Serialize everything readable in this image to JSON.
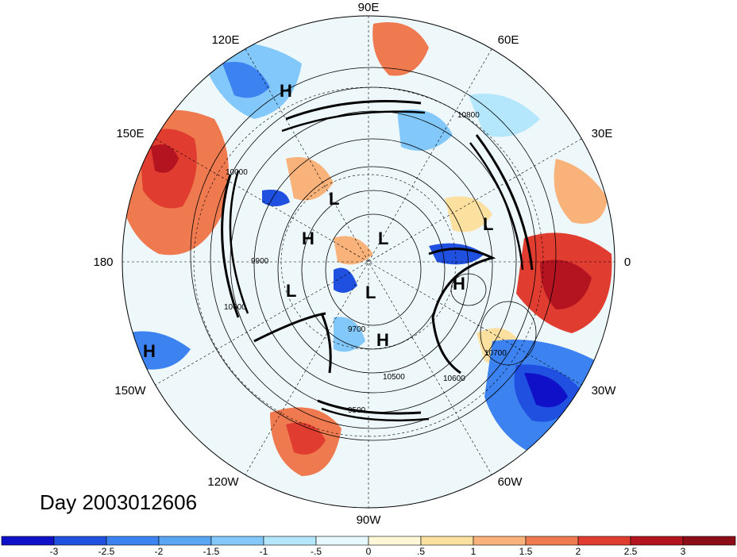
{
  "title": "Day 2003012606",
  "longitude_labels": {
    "top": "90E",
    "upper_left": "120E",
    "upper_right": "60E",
    "left_upper": "150E",
    "right_upper": "30E",
    "left": "180",
    "right": "0",
    "left_lower": "150W",
    "right_lower": "30W",
    "lower_left": "120W",
    "lower_right": "60W",
    "bottom": "90W"
  },
  "pressure_centers": [
    "H",
    "H",
    "L",
    "H",
    "L",
    "L",
    "L",
    "H",
    "L",
    "H",
    "L"
  ],
  "contour_labels": [
    "10800",
    "10000",
    "9900",
    "9700",
    "10700",
    "10600",
    "10500",
    "9500",
    "10600"
  ],
  "colorbar": {
    "ticks": [
      "-3",
      "-2.5",
      "-2",
      "-1.5",
      "-1",
      "-.5",
      "0",
      ".5",
      "1",
      "1.5",
      "2",
      "2.5",
      "3"
    ],
    "colors": [
      "#1010c8",
      "#2050e0",
      "#3c82f0",
      "#5aa6f5",
      "#82c8fa",
      "#b4e6fc",
      "#e6f8fc",
      "#fff8d6",
      "#fce0a0",
      "#f8b27a",
      "#f07a50",
      "#e03c30",
      "#b41420",
      "#8c0c18"
    ]
  }
}
